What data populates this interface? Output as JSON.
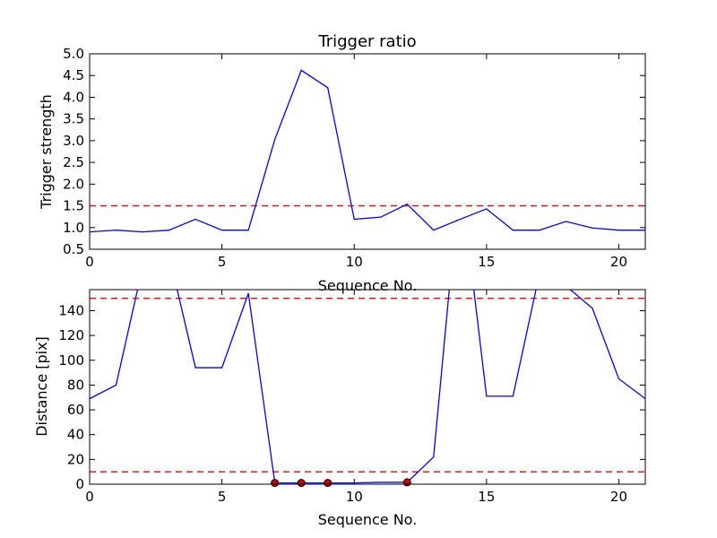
{
  "chart_data": [
    {
      "type": "line",
      "title": "Trigger ratio",
      "xlabel": "Sequence No.",
      "ylabel": "Trigger strength",
      "xlim": [
        0,
        21
      ],
      "ylim": [
        0.5,
        5.0
      ],
      "xticks": [
        0,
        5,
        10,
        15,
        20
      ],
      "yticks": [
        0.5,
        1.0,
        1.5,
        2.0,
        2.5,
        3.0,
        3.5,
        4.0,
        4.5,
        5.0
      ],
      "ytick_labels": [
        "0.5",
        "1.0",
        "1.5",
        "2.0",
        "2.5",
        "3.0",
        "3.5",
        "4.0",
        "4.5",
        "5.0"
      ],
      "series": [
        {
          "x": [
            0,
            1,
            2,
            3,
            4,
            5,
            6,
            7,
            8,
            9,
            10,
            11,
            12,
            13,
            14,
            15,
            16,
            17,
            18,
            19,
            20,
            21
          ],
          "y": [
            0.9,
            0.94,
            0.9,
            0.94,
            1.19,
            0.94,
            0.94,
            3.03,
            4.62,
            4.22,
            1.19,
            1.24,
            1.54,
            0.94,
            1.19,
            1.43,
            0.94,
            0.94,
            1.14,
            0.99,
            0.94,
            0.94
          ],
          "color": "#0000ff"
        }
      ],
      "hlines": [
        {
          "y": 1.5,
          "color": "#ff0000",
          "style": "dashed"
        }
      ]
    },
    {
      "type": "line",
      "title": "",
      "xlabel": "Sequence No.",
      "ylabel": "Distance [pix]",
      "xlim": [
        0,
        21
      ],
      "ylim": [
        0,
        157
      ],
      "xticks": [
        0,
        5,
        10,
        15,
        20
      ],
      "yticks": [
        0,
        20,
        40,
        60,
        80,
        100,
        120,
        140
      ],
      "series": [
        {
          "x": [
            0,
            1,
            2,
            3,
            4,
            5,
            6,
            7,
            8,
            9,
            10,
            11,
            12,
            13,
            14,
            15,
            16,
            17,
            18,
            19,
            20,
            21
          ],
          "y": [
            69,
            80,
            175,
            185,
            94,
            94,
            154,
            1,
            1,
            1,
            1,
            1.5,
            1.5,
            22,
            250,
            71,
            71,
            170,
            160,
            142,
            85,
            69
          ],
          "color": "#0000ff"
        }
      ],
      "markers": {
        "x": [
          7,
          8,
          9,
          12
        ],
        "y": [
          1,
          1,
          1,
          1.5
        ],
        "color": "#cc0000"
      },
      "hlines": [
        {
          "y": 150,
          "color": "#ff0000",
          "style": "dashed"
        },
        {
          "y": 10,
          "color": "#ff0000",
          "style": "dashed"
        }
      ]
    }
  ]
}
